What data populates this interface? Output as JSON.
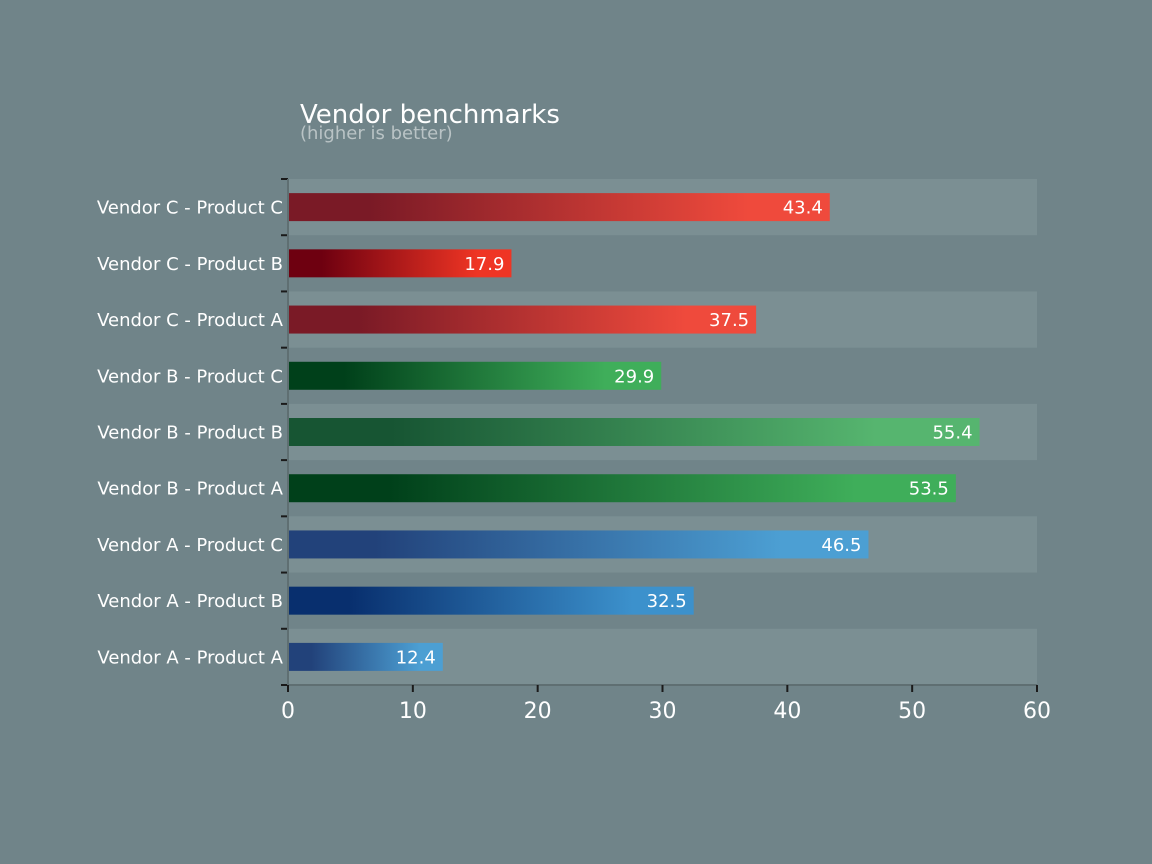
{
  "chart_data": {
    "type": "bar",
    "orientation": "horizontal",
    "title": "Vendor benchmarks",
    "subtitle": "(higher is better)",
    "xlabel": "",
    "ylabel": "",
    "xlim": [
      0,
      60
    ],
    "x_ticks": [
      0,
      10,
      20,
      30,
      40,
      50,
      60
    ],
    "x_tick_labels": [
      "0",
      "10",
      "20",
      "30",
      "40",
      "50",
      "60"
    ],
    "grid": false,
    "categories": [
      "Vendor C - Product C",
      "Vendor C - Product B",
      "Vendor C - Product A",
      "Vendor B - Product C",
      "Vendor B - Product B",
      "Vendor B - Product A",
      "Vendor A - Product C",
      "Vendor A - Product B",
      "Vendor A - Product A"
    ],
    "values": [
      43.4,
      17.9,
      37.5,
      29.9,
      55.4,
      53.5,
      46.5,
      32.5,
      12.4
    ],
    "value_labels": [
      "43.4",
      "17.9",
      "37.5",
      "29.9",
      "55.4",
      "53.5",
      "46.5",
      "32.5",
      "12.4"
    ],
    "bar_colors": [
      [
        "#7a1a26",
        "#ef4a3c"
      ],
      [
        "#6e0010",
        "#ef3524"
      ],
      [
        "#7a1a26",
        "#ef4a3c"
      ],
      [
        "#00401a",
        "#3fae5a"
      ],
      [
        "#175533",
        "#56b56f"
      ],
      [
        "#00401a",
        "#3fae5a"
      ],
      [
        "#22427a",
        "#4c9fd3"
      ],
      [
        "#082f6e",
        "#3c91cc"
      ],
      [
        "#22427a",
        "#4c9fd3"
      ]
    ],
    "background_color": "#708489",
    "band_color": "#7b8f93"
  }
}
